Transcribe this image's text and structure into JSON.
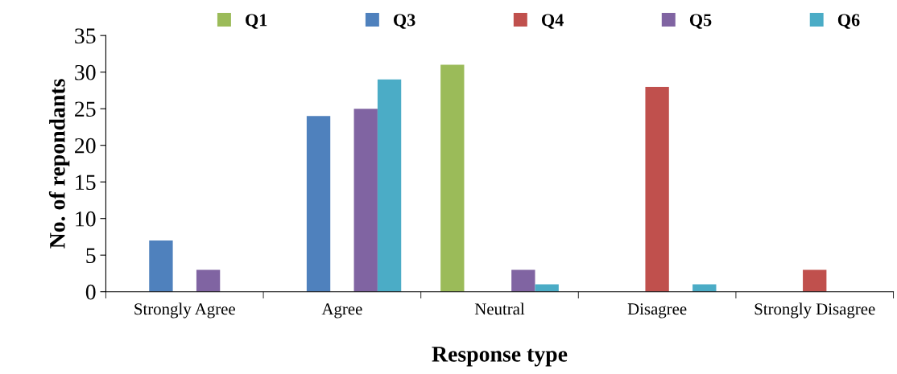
{
  "chart_data": {
    "type": "bar",
    "xlabel": "Response type",
    "ylabel": "No. of repondants",
    "categories": [
      "Strongly Agree",
      "Agree",
      "Neutral",
      "Disagree",
      "Strongly Disagree"
    ],
    "series": [
      {
        "name": "Q1",
        "color": "#9bbb59",
        "values": [
          0,
          0,
          31,
          0,
          0
        ]
      },
      {
        "name": "Q3",
        "color": "#4f81bd",
        "values": [
          7,
          24,
          0,
          0,
          0
        ]
      },
      {
        "name": "Q4",
        "color": "#c0504d",
        "values": [
          0,
          0,
          0,
          28,
          3
        ]
      },
      {
        "name": "Q5",
        "color": "#8064a2",
        "values": [
          3,
          25,
          3,
          0,
          0
        ]
      },
      {
        "name": "Q6",
        "color": "#4bacc6",
        "values": [
          0,
          29,
          1,
          1,
          0
        ]
      }
    ],
    "ylim": [
      0,
      35
    ],
    "yticks": [
      0,
      5,
      10,
      15,
      20,
      25,
      30,
      35
    ],
    "grid": false,
    "legend": "top"
  }
}
